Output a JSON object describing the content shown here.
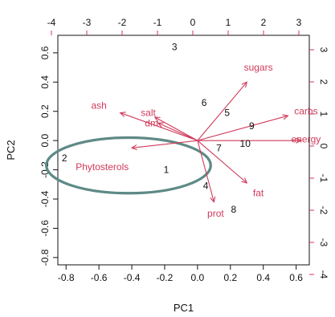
{
  "chart_data": {
    "type": "scatter",
    "subtype": "biplot",
    "xlabel": "PC1",
    "ylabel": "PC2",
    "xlim": [
      -0.85,
      0.68
    ],
    "ylim": [
      -0.85,
      0.72
    ],
    "xticks": [
      -0.8,
      -0.6,
      -0.4,
      -0.2,
      0.0,
      0.2,
      0.4,
      0.6
    ],
    "yticks": [
      -0.8,
      -0.6,
      -0.4,
      -0.2,
      0.0,
      0.2,
      0.4,
      0.6
    ],
    "xtick_labels": [
      "-0.8",
      "-0.6",
      "-0.4",
      "-0.2",
      "0.0",
      "0.2",
      "0.4",
      "0.6"
    ],
    "ytick_labels": [
      "-0.8",
      "-0.6",
      "-0.4",
      "-0.2",
      "0.0",
      "0.2",
      "0.4",
      "0.6"
    ],
    "top_axis": {
      "ticks": [
        -4,
        -3,
        -2,
        -1,
        0,
        1,
        2,
        3
      ],
      "labels": [
        "-4",
        "-3",
        "-2",
        "-1",
        "0",
        "1",
        "2",
        "3"
      ]
    },
    "right_axis": {
      "ticks": [
        3,
        2,
        1,
        0,
        -1,
        -2,
        -3,
        -4
      ],
      "labels": [
        "3",
        "2",
        "1",
        "0",
        "-1",
        "-2",
        "-3",
        "-4"
      ]
    },
    "observations": [
      {
        "label": "1",
        "x": -0.19,
        "y": -0.2
      },
      {
        "label": "2",
        "x": -0.81,
        "y": -0.12
      },
      {
        "label": "3",
        "x": -0.14,
        "y": 0.64
      },
      {
        "label": "4",
        "x": 0.05,
        "y": -0.31
      },
      {
        "label": "5",
        "x": 0.18,
        "y": 0.19
      },
      {
        "label": "6",
        "x": 0.04,
        "y": 0.26
      },
      {
        "label": "7",
        "x": 0.13,
        "y": -0.05
      },
      {
        "label": "8",
        "x": 0.22,
        "y": -0.47
      },
      {
        "label": "9",
        "x": 0.33,
        "y": 0.1
      },
      {
        "label": "10",
        "x": 0.29,
        "y": -0.02
      }
    ],
    "loadings": [
      {
        "label": "sugars",
        "x": 0.3,
        "y": 0.4,
        "label_x": 0.37,
        "label_y": 0.5
      },
      {
        "label": "carbs",
        "x": 0.55,
        "y": 0.17,
        "label_x": 0.66,
        "label_y": 0.2
      },
      {
        "label": "energy",
        "x": 0.63,
        "y": 0.0,
        "label_x": 0.66,
        "label_y": 0.01
      },
      {
        "label": "fat",
        "x": 0.3,
        "y": -0.29,
        "label_x": 0.37,
        "label_y": -0.36
      },
      {
        "label": "prot",
        "x": 0.1,
        "y": -0.42,
        "label_x": 0.11,
        "label_y": -0.5
      },
      {
        "label": "ash",
        "x": -0.47,
        "y": 0.19,
        "label_x": -0.6,
        "label_y": 0.24
      },
      {
        "label": "salt",
        "x": -0.26,
        "y": 0.16,
        "label_x": -0.3,
        "label_y": 0.19
      },
      {
        "label": "dm",
        "x": -0.24,
        "y": 0.12,
        "label_x": -0.28,
        "label_y": 0.12
      },
      {
        "label": "Phytosterols",
        "x": -0.4,
        "y": -0.05,
        "label_x": -0.58,
        "label_y": -0.18
      }
    ],
    "annotations": [
      {
        "shape": "ellipse",
        "cx": -0.42,
        "cy": -0.17,
        "rx": 0.5,
        "ry": 0.19
      }
    ],
    "grid": false,
    "legend": "none"
  },
  "colors": {
    "axis": "#111111",
    "loading": "#d03a5a",
    "observation_text": "#111111",
    "ellipse": "#5e8a86"
  }
}
